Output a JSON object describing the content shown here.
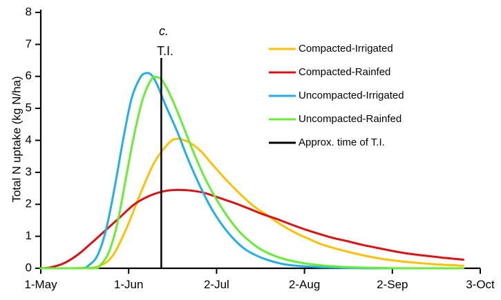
{
  "chart_data": {
    "type": "line",
    "title": "",
    "xlabel": "",
    "ylabel": "Total N uptake (kg N/ha)",
    "xlim": [
      0,
      155
    ],
    "ylim": [
      0,
      8
    ],
    "grid": false,
    "legend_position": "right",
    "x_ticks": [
      {
        "label": "1-May",
        "day": 0
      },
      {
        "label": "1-Jun",
        "day": 31
      },
      {
        "label": "2-Jul",
        "day": 62
      },
      {
        "label": "2-Aug",
        "day": 93
      },
      {
        "label": "2-Sep",
        "day": 124
      },
      {
        "label": "3-Oct",
        "day": 155
      }
    ],
    "y_ticks": [
      0,
      1,
      2,
      3,
      4,
      5,
      6,
      7,
      8
    ],
    "x_day_end": 149,
    "series": [
      {
        "name": "Compacted-Irrigated",
        "color": "#ffc000",
        "points": [
          [
            0,
            0
          ],
          [
            10,
            0
          ],
          [
            15,
            0.01
          ],
          [
            20,
            0.05
          ],
          [
            25,
            0.35
          ],
          [
            30,
            1.2
          ],
          [
            35,
            2.3
          ],
          [
            40,
            3.3
          ],
          [
            45,
            3.9
          ],
          [
            48,
            4.05
          ],
          [
            52,
            3.95
          ],
          [
            56,
            3.7
          ],
          [
            60,
            3.3
          ],
          [
            65,
            2.8
          ],
          [
            70,
            2.35
          ],
          [
            75,
            1.95
          ],
          [
            80,
            1.65
          ],
          [
            85,
            1.35
          ],
          [
            90,
            1.1
          ],
          [
            95,
            0.9
          ],
          [
            100,
            0.72
          ],
          [
            110,
            0.48
          ],
          [
            120,
            0.3
          ],
          [
            130,
            0.19
          ],
          [
            140,
            0.12
          ],
          [
            149,
            0.08
          ]
        ]
      },
      {
        "name": "Compacted-Rainfed",
        "color": "#e01010",
        "points": [
          [
            0,
            0
          ],
          [
            3,
            0.02
          ],
          [
            8,
            0.15
          ],
          [
            13,
            0.42
          ],
          [
            18,
            0.8
          ],
          [
            23,
            1.2
          ],
          [
            28,
            1.6
          ],
          [
            33,
            2.0
          ],
          [
            38,
            2.25
          ],
          [
            43,
            2.4
          ],
          [
            48,
            2.45
          ],
          [
            53,
            2.43
          ],
          [
            58,
            2.35
          ],
          [
            63,
            2.2
          ],
          [
            68,
            2.05
          ],
          [
            73,
            1.88
          ],
          [
            78,
            1.7
          ],
          [
            83,
            1.55
          ],
          [
            88,
            1.38
          ],
          [
            93,
            1.22
          ],
          [
            98,
            1.08
          ],
          [
            103,
            0.95
          ],
          [
            108,
            0.85
          ],
          [
            113,
            0.74
          ],
          [
            118,
            0.65
          ],
          [
            123,
            0.56
          ],
          [
            128,
            0.48
          ],
          [
            133,
            0.42
          ],
          [
            138,
            0.37
          ],
          [
            143,
            0.32
          ],
          [
            149,
            0.27
          ]
        ]
      },
      {
        "name": "Uncompacted-Irrigated",
        "color": "#1fb0e8",
        "points": [
          [
            0,
            0
          ],
          [
            14,
            0
          ],
          [
            17,
            0.1
          ],
          [
            20,
            0.4
          ],
          [
            23,
            1.2
          ],
          [
            26,
            2.5
          ],
          [
            29,
            4.0
          ],
          [
            32,
            5.3
          ],
          [
            35,
            5.95
          ],
          [
            37,
            6.1
          ],
          [
            39,
            6.05
          ],
          [
            41,
            5.75
          ],
          [
            44,
            5.1
          ],
          [
            48,
            4.3
          ],
          [
            52,
            3.4
          ],
          [
            56,
            2.6
          ],
          [
            60,
            1.9
          ],
          [
            64,
            1.35
          ],
          [
            68,
            0.92
          ],
          [
            72,
            0.6
          ],
          [
            76,
            0.4
          ],
          [
            80,
            0.26
          ],
          [
            85,
            0.14
          ],
          [
            90,
            0.08
          ],
          [
            100,
            0.03
          ],
          [
            110,
            0.01
          ],
          [
            120,
            0
          ],
          [
            149,
            0
          ]
        ]
      },
      {
        "name": "Uncompacted-Rainfed",
        "color": "#66ee33",
        "points": [
          [
            0,
            0
          ],
          [
            18,
            0
          ],
          [
            21,
            0.1
          ],
          [
            24,
            0.5
          ],
          [
            27,
            1.4
          ],
          [
            30,
            2.8
          ],
          [
            33,
            4.2
          ],
          [
            36,
            5.3
          ],
          [
            39,
            5.9
          ],
          [
            41,
            5.98
          ],
          [
            43,
            5.85
          ],
          [
            46,
            5.35
          ],
          [
            50,
            4.5
          ],
          [
            54,
            3.6
          ],
          [
            58,
            2.8
          ],
          [
            62,
            2.15
          ],
          [
            66,
            1.6
          ],
          [
            70,
            1.15
          ],
          [
            74,
            0.82
          ],
          [
            78,
            0.57
          ],
          [
            83,
            0.37
          ],
          [
            88,
            0.24
          ],
          [
            95,
            0.13
          ],
          [
            105,
            0.05
          ],
          [
            115,
            0.02
          ],
          [
            130,
            0
          ],
          [
            149,
            0
          ]
        ]
      }
    ],
    "vertical_marker": {
      "name": "Approx. time of T.I.",
      "color": "#000000",
      "day": 42.5
    },
    "annotations": {
      "panel_letter": "c.",
      "marker_label": "T.I."
    }
  }
}
